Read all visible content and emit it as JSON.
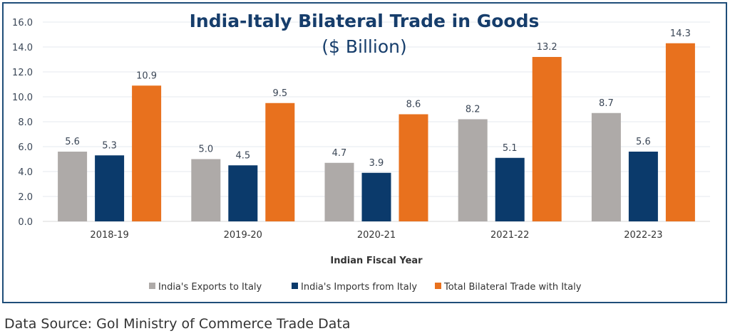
{
  "chart_data": {
    "type": "bar",
    "title": "India-Italy Bilateral Trade in Goods",
    "subtitle": "($ Billion)",
    "xlabel": "Indian Fiscal Year",
    "ylabel": "",
    "ylim": [
      0,
      16
    ],
    "yticks": [
      "0.0",
      "2.0",
      "4.0",
      "6.0",
      "8.0",
      "10.0",
      "12.0",
      "14.0",
      "16.0"
    ],
    "grid": true,
    "legend_position": "bottom",
    "categories": [
      "2018-19",
      "2019-20",
      "2020-21",
      "2021-22",
      "2022-23"
    ],
    "series": [
      {
        "name": "India's Exports to Italy",
        "color": "#aeaaa8",
        "values": [
          5.6,
          5.0,
          4.7,
          8.2,
          8.7
        ],
        "labels": [
          "5.6",
          "5.0",
          "4.7",
          "8.2",
          "8.7"
        ]
      },
      {
        "name": "India's Imports from Italy",
        "color": "#0b3a6b",
        "values": [
          5.3,
          4.5,
          3.9,
          5.1,
          5.6
        ],
        "labels": [
          "5.3",
          "4.5",
          "3.9",
          "5.1",
          "5.6"
        ]
      },
      {
        "name": "Total Bilateral Trade with Italy",
        "color": "#e8711e",
        "values": [
          10.9,
          9.5,
          8.6,
          13.2,
          14.3
        ],
        "labels": [
          "10.9",
          "9.5",
          "8.6",
          "13.2",
          "14.3"
        ]
      }
    ]
  },
  "footer": {
    "source": "Data Source: GoI Ministry of Commerce Trade Data"
  }
}
